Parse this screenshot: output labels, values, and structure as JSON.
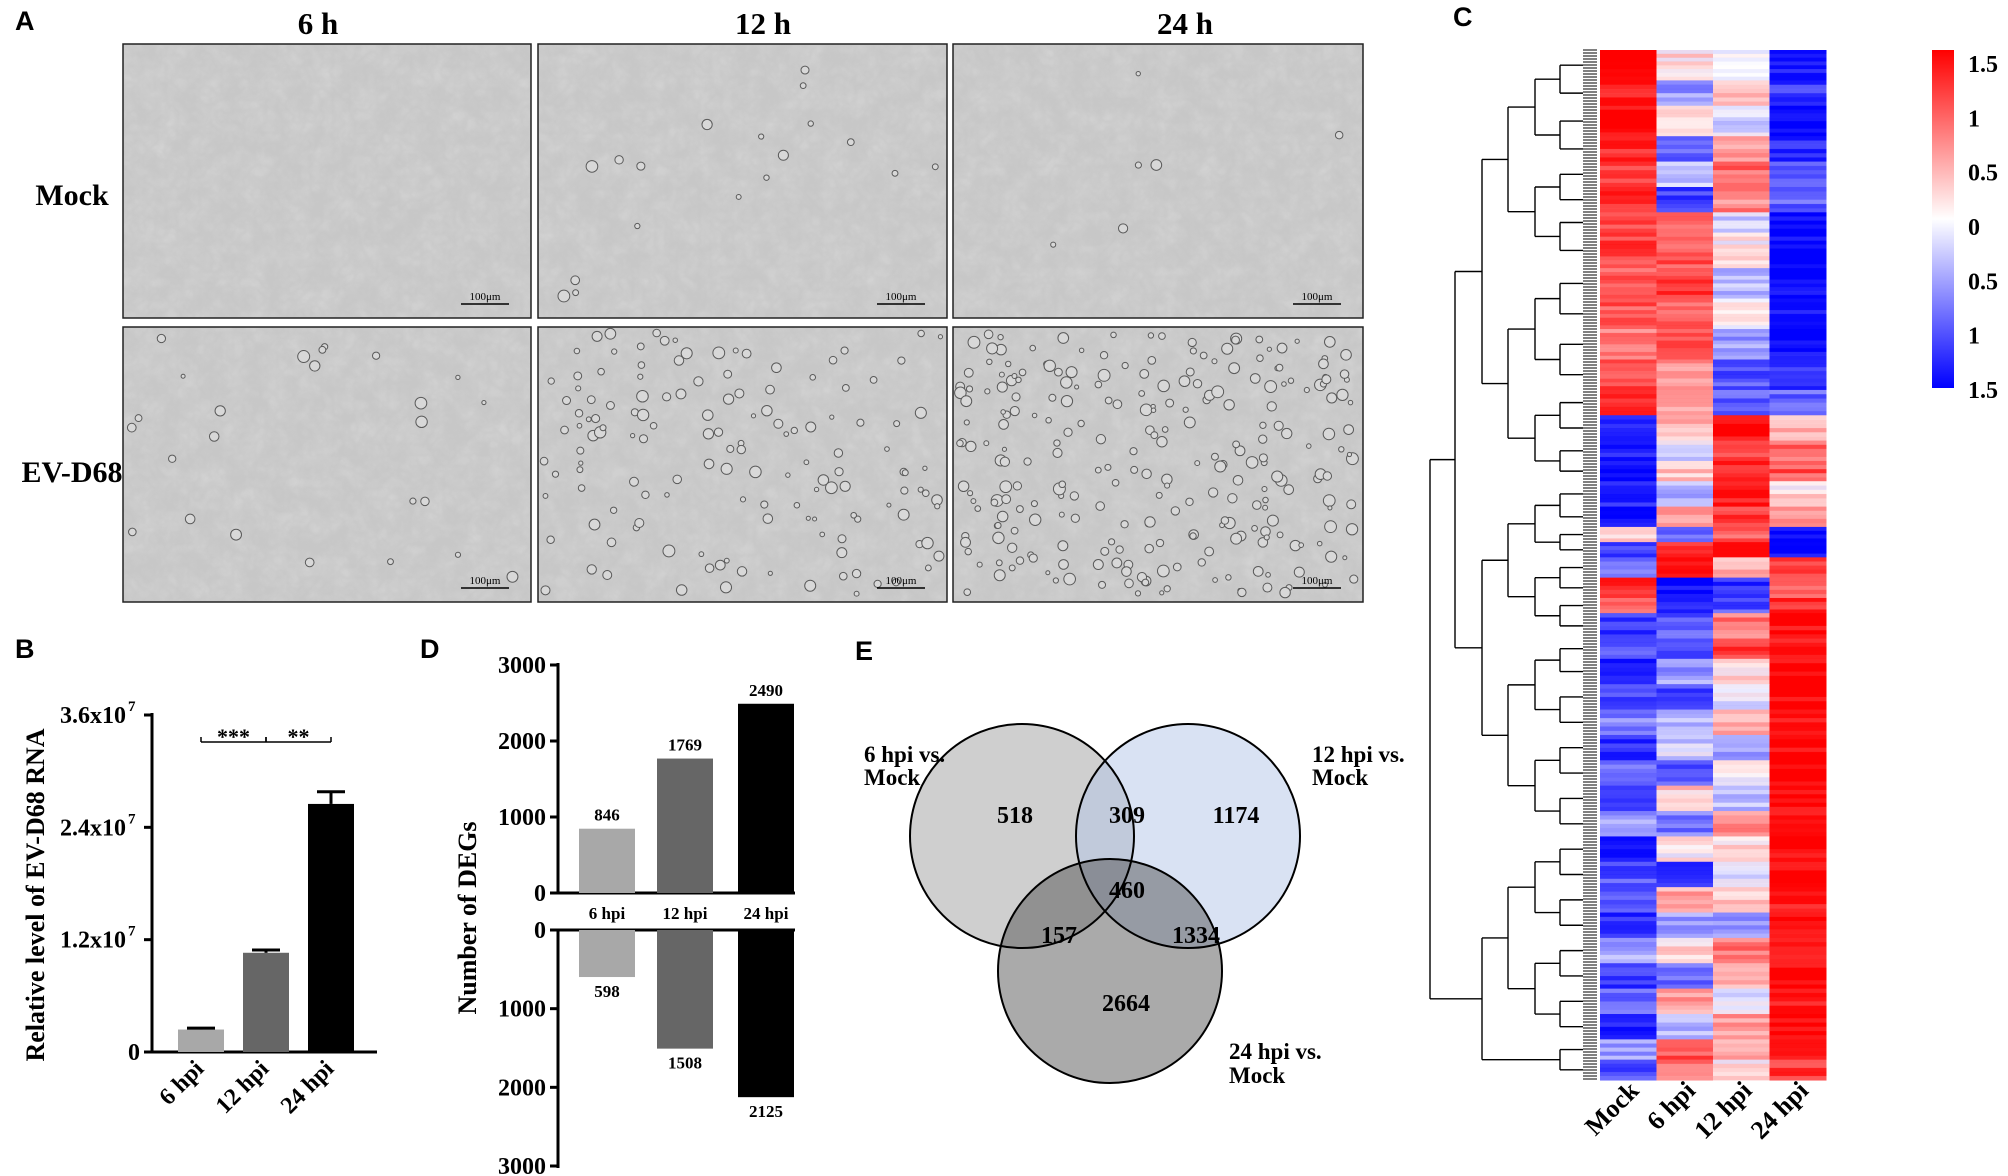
{
  "panel_labels": {
    "a": "A",
    "b": "B",
    "c": "C",
    "d": "D",
    "e": "E"
  },
  "panel_a": {
    "columns": [
      "6 h",
      "12 h",
      "24 h"
    ],
    "rows": [
      "Mock",
      "EV-D68"
    ],
    "scale_bar": "100μm"
  },
  "chart_data": [
    {
      "panel": "B",
      "type": "bar",
      "categories": [
        "6 hpi",
        "12 hpi",
        "24 hpi"
      ],
      "values": [
        2400000,
        10600000,
        26500000
      ],
      "errors": [
        150000,
        300000,
        1300000
      ],
      "colors": [
        "#a8a8a8",
        "#666666",
        "#000000"
      ],
      "ylabel": "Relative level of EV-D68 RNA",
      "yticks": [
        "0",
        "1.2x10",
        "2.4x10",
        "3.6x10"
      ],
      "ytick_exponent": "7",
      "ylim": [
        0,
        36000000
      ],
      "significance": [
        "***",
        "**"
      ]
    },
    {
      "panel": "D",
      "type": "bar",
      "categories": [
        "6 hpi",
        "12 hpi",
        "24 hpi"
      ],
      "series": [
        {
          "values": [
            846,
            1769,
            2490
          ]
        },
        {
          "values": [
            598,
            1508,
            2125
          ]
        }
      ],
      "colors": [
        "#a8a8a8",
        "#666666",
        "#000000"
      ],
      "ylabel": "Number of DEGs",
      "yticks_top": [
        "0",
        "1000",
        "2000",
        "3000"
      ],
      "yticks_bottom": [
        "0",
        "1000",
        "2000",
        "3000"
      ],
      "ylim": [
        0,
        3000
      ]
    },
    {
      "panel": "E",
      "type": "venn",
      "sets": [
        "6 hpi vs. Mock",
        "12 hpi vs. Mock",
        "24 hpi vs. Mock"
      ],
      "set_label_lines": [
        [
          "6 hpi vs.",
          "Mock"
        ],
        [
          "12 hpi vs.",
          "Mock"
        ],
        [
          "24 hpi vs.",
          "Mock"
        ]
      ],
      "regions": {
        "a": "518",
        "ab": "309",
        "b": "1174",
        "abc": "460",
        "ac": "157",
        "bc": "1334",
        "c": "2664"
      }
    },
    {
      "panel": "C",
      "type": "heatmap",
      "columns": [
        "Mock",
        "6 hpi",
        "12 hpi",
        "24 hpi"
      ],
      "colorbar_ticks": [
        "1.5",
        "1",
        "0.5",
        "0",
        "0.5",
        "1",
        "1.5"
      ],
      "colorbar_colors": [
        "#ff0000",
        "#ffffff",
        "#0000ff"
      ],
      "row_blocks": [
        [
          0.03,
          [
            1.5,
            0.2,
            0.0,
            -1.4
          ]
        ],
        [
          0.025,
          [
            1.4,
            -0.6,
            0.3,
            -1.2
          ]
        ],
        [
          0.03,
          [
            1.5,
            0.1,
            -0.2,
            -1.5
          ]
        ],
        [
          0.025,
          [
            1.3,
            -0.9,
            0.5,
            -1.3
          ]
        ],
        [
          0.025,
          [
            1.2,
            -0.3,
            0.9,
            -1.0
          ]
        ],
        [
          0.025,
          [
            1.3,
            -1.1,
            0.7,
            -0.9
          ]
        ],
        [
          0.02,
          [
            1.0,
            0.8,
            -0.3,
            -1.5
          ]
        ],
        [
          0.035,
          [
            1.1,
            1.0,
            0.1,
            -1.5
          ]
        ],
        [
          0.03,
          [
            0.9,
            1.2,
            -0.4,
            -1.5
          ]
        ],
        [
          0.03,
          [
            1.0,
            0.9,
            0.0,
            -1.4
          ]
        ],
        [
          0.03,
          [
            0.8,
            1.1,
            -0.6,
            -1.5
          ]
        ],
        [
          0.03,
          [
            1.1,
            0.7,
            -1.0,
            -1.2
          ]
        ],
        [
          0.025,
          [
            1.2,
            0.5,
            -0.9,
            -0.9
          ]
        ],
        [
          0.025,
          [
            -1.2,
            0.4,
            1.5,
            0.5
          ]
        ],
        [
          0.02,
          [
            -1.4,
            -0.2,
            1.1,
            0.9
          ]
        ],
        [
          0.02,
          [
            -1.5,
            0.3,
            1.3,
            1.0
          ]
        ],
        [
          0.025,
          [
            -1.3,
            -0.4,
            1.4,
            0.2
          ]
        ],
        [
          0.02,
          [
            -1.5,
            0.6,
            1.2,
            0.6
          ]
        ],
        [
          0.015,
          [
            0.3,
            -0.8,
            0.9,
            -1.5
          ]
        ],
        [
          0.015,
          [
            -1.1,
            1.2,
            1.4,
            -1.5
          ]
        ],
        [
          0.02,
          [
            -0.8,
            1.4,
            0.4,
            1.2
          ]
        ],
        [
          0.02,
          [
            1.3,
            -1.5,
            -1.3,
            0.8
          ]
        ],
        [
          0.015,
          [
            1.0,
            -1.2,
            -1.0,
            1.3
          ]
        ],
        [
          0.025,
          [
            -1.2,
            -1.0,
            0.8,
            1.5
          ]
        ],
        [
          0.02,
          [
            -0.9,
            -1.2,
            1.2,
            1.4
          ]
        ],
        [
          0.025,
          [
            -1.4,
            -0.6,
            0.3,
            1.5
          ]
        ],
        [
          0.025,
          [
            -1.1,
            -1.1,
            -0.2,
            1.5
          ]
        ],
        [
          0.025,
          [
            -0.7,
            -0.5,
            0.4,
            1.4
          ]
        ],
        [
          0.025,
          [
            -1.3,
            -0.3,
            -0.5,
            1.5
          ]
        ],
        [
          0.025,
          [
            -0.8,
            -1.0,
            0.1,
            1.5
          ]
        ],
        [
          0.025,
          [
            -1.2,
            0.3,
            -0.4,
            1.5
          ]
        ],
        [
          0.025,
          [
            -0.6,
            -0.8,
            0.6,
            1.4
          ]
        ],
        [
          0.025,
          [
            -1.4,
            0.1,
            0.2,
            1.5
          ]
        ],
        [
          0.025,
          [
            -1.0,
            -1.2,
            -0.3,
            1.5
          ]
        ],
        [
          0.025,
          [
            -0.9,
            0.5,
            0.3,
            1.4
          ]
        ],
        [
          0.025,
          [
            -1.3,
            -0.6,
            -0.7,
            1.5
          ]
        ],
        [
          0.025,
          [
            -0.5,
            0.2,
            0.8,
            1.3
          ]
        ],
        [
          0.025,
          [
            -1.2,
            -0.9,
            0.4,
            1.5
          ]
        ],
        [
          0.025,
          [
            -0.8,
            0.6,
            -0.2,
            1.4
          ]
        ],
        [
          0.025,
          [
            -1.4,
            -0.4,
            0.6,
            1.5
          ]
        ],
        [
          0.02,
          [
            -0.6,
            1.0,
            0.5,
            1.3
          ]
        ],
        [
          0.02,
          [
            -1.0,
            0.8,
            0.2,
            1.2
          ]
        ]
      ]
    }
  ]
}
